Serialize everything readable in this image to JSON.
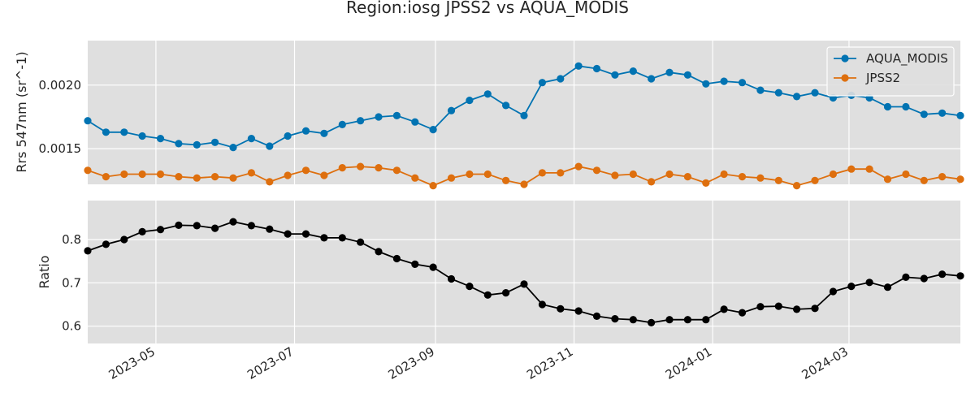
{
  "chart_data": {
    "type": "line",
    "title": "Region:iosg JPSS2 vs AQUA_MODIS",
    "x_dates": [
      "2023-04-01",
      "2023-04-09",
      "2023-04-17",
      "2023-04-25",
      "2023-05-03",
      "2023-05-11",
      "2023-05-19",
      "2023-05-27",
      "2023-06-04",
      "2023-06-12",
      "2023-06-20",
      "2023-06-28",
      "2023-07-06",
      "2023-07-14",
      "2023-07-22",
      "2023-07-30",
      "2023-08-07",
      "2023-08-15",
      "2023-08-23",
      "2023-08-31",
      "2023-09-08",
      "2023-09-16",
      "2023-09-24",
      "2023-10-02",
      "2023-10-10",
      "2023-10-18",
      "2023-10-26",
      "2023-11-03",
      "2023-11-11",
      "2023-11-19",
      "2023-11-27",
      "2023-12-05",
      "2023-12-13",
      "2023-12-21",
      "2023-12-29",
      "2024-01-06",
      "2024-01-14",
      "2024-01-22",
      "2024-01-30",
      "2024-02-07",
      "2024-02-15",
      "2024-02-23",
      "2024-03-02",
      "2024-03-10",
      "2024-03-18",
      "2024-03-26",
      "2024-04-03",
      "2024-04-11",
      "2024-04-19"
    ],
    "x_ticks": [
      "2023-05",
      "2023-07",
      "2023-09",
      "2023-11",
      "2024-01",
      "2024-03"
    ],
    "xlim": [
      "2023-04-01",
      "2024-04-19"
    ],
    "panels": [
      {
        "ylabel": "Rrs 547nm (sr^-1)",
        "ylim": [
          0.00122,
          0.00235
        ],
        "y_ticks": [
          0.0015,
          0.002
        ],
        "y_tick_labels": [
          "0.0015",
          "0.0020"
        ],
        "legend": "top-right",
        "series": [
          {
            "name": "AQUA_MODIS",
            "color": "#0173b2",
            "values": [
              0.00172,
              0.00163,
              0.00163,
              0.0016,
              0.00158,
              0.00154,
              0.00153,
              0.00155,
              0.00151,
              0.00158,
              0.00152,
              0.0016,
              0.00164,
              0.00162,
              0.00169,
              0.00172,
              0.00175,
              0.00176,
              0.00171,
              0.00165,
              0.0018,
              0.00188,
              0.00193,
              0.00184,
              0.00176,
              0.00202,
              0.00205,
              0.00215,
              0.00213,
              0.00208,
              0.00211,
              0.00205,
              0.0021,
              0.00208,
              0.00201,
              0.00203,
              0.00202,
              0.00196,
              0.00194,
              0.00191,
              0.00194,
              0.0019,
              0.00192,
              0.0019,
              0.00183,
              0.00183,
              0.00177,
              0.00178,
              0.00176
            ]
          },
          {
            "name": "JPSS2",
            "color": "#de6f0e",
            "values": [
              0.00133,
              0.00128,
              0.0013,
              0.0013,
              0.0013,
              0.00128,
              0.00127,
              0.00128,
              0.00127,
              0.00131,
              0.00124,
              0.00129,
              0.00133,
              0.00129,
              0.00135,
              0.00136,
              0.00135,
              0.00133,
              0.00127,
              0.00121,
              0.00127,
              0.0013,
              0.0013,
              0.00125,
              0.00122,
              0.00131,
              0.00131,
              0.00136,
              0.00133,
              0.00129,
              0.0013,
              0.00124,
              0.0013,
              0.00128,
              0.00123,
              0.0013,
              0.00128,
              0.00127,
              0.00125,
              0.00121,
              0.00125,
              0.0013,
              0.00134,
              0.00134,
              0.00126,
              0.0013,
              0.00125,
              0.00128,
              0.00126
            ]
          }
        ]
      },
      {
        "ylabel": "Ratio",
        "ylim": [
          0.56,
          0.89
        ],
        "y_ticks": [
          0.6,
          0.7,
          0.8
        ],
        "y_tick_labels": [
          "0.6",
          "0.7",
          "0.8"
        ],
        "series": [
          {
            "name": "",
            "color": "#000000",
            "values": [
              0.774,
              0.789,
              0.8,
              0.818,
              0.823,
              0.833,
              0.832,
              0.826,
              0.841,
              0.832,
              0.824,
              0.813,
              0.813,
              0.804,
              0.804,
              0.794,
              0.772,
              0.756,
              0.743,
              0.736,
              0.709,
              0.692,
              0.672,
              0.677,
              0.697,
              0.65,
              0.64,
              0.635,
              0.623,
              0.617,
              0.615,
              0.608,
              0.615,
              0.615,
              0.615,
              0.639,
              0.631,
              0.645,
              0.646,
              0.639,
              0.641,
              0.68,
              0.692,
              0.701,
              0.69,
              0.713,
              0.71,
              0.72,
              0.716
            ]
          }
        ]
      }
    ]
  }
}
